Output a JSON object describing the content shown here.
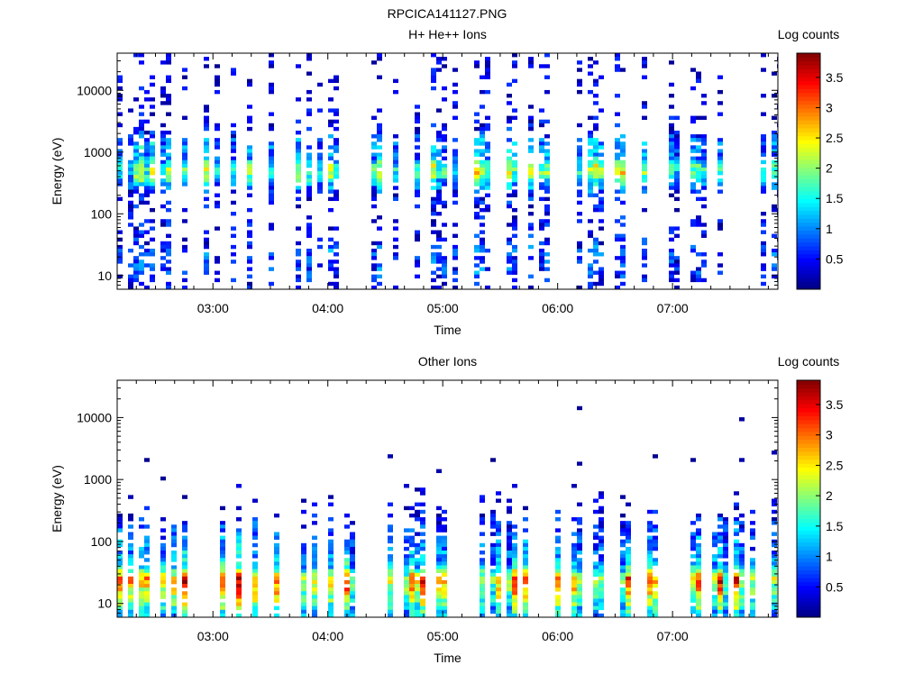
{
  "file_title": "RPCICA141127.PNG",
  "colormap": "jet",
  "chart_data": [
    {
      "type": "heatmap",
      "title": "H+ He++ Ions",
      "xlabel": "Time",
      "ylabel": "Energy (eV)",
      "colorbar_label": "Log counts",
      "x_ticks": [
        "03:00",
        "04:00",
        "05:00",
        "06:00",
        "07:00"
      ],
      "xlim": [
        "02:10",
        "07:55"
      ],
      "y_scale": "log",
      "y_ticks": [
        10,
        100,
        1000,
        10000
      ],
      "ylim": [
        6,
        40000
      ],
      "color_range": [
        0,
        3.9
      ],
      "colorbar_ticks": [
        0.5,
        1,
        1.5,
        2,
        2.5,
        3,
        3.5
      ],
      "structure": {
        "profile": [
          [
            7,
            0.35
          ],
          [
            9,
            0.7
          ],
          [
            12,
            0.85
          ],
          [
            18,
            0.8
          ],
          [
            25,
            1.0
          ],
          [
            35,
            0.55
          ],
          [
            60,
            0.45
          ],
          [
            110,
            0.4
          ],
          [
            200,
            0.6
          ],
          [
            300,
            1.35
          ],
          [
            400,
            2.0
          ],
          [
            500,
            2.4
          ],
          [
            650,
            2.0
          ],
          [
            800,
            1.15
          ],
          [
            1000,
            1.15
          ],
          [
            1300,
            1.35
          ],
          [
            1600,
            1.1
          ],
          [
            2000,
            0.55
          ],
          [
            3500,
            0.35
          ],
          [
            8000,
            0.3
          ],
          [
            20000,
            0.3
          ],
          [
            40000,
            0.25
          ]
        ],
        "peak_energy": 500,
        "peak_log_counts": 3.0,
        "secondary_band_energy": 1400
      }
    },
    {
      "type": "heatmap",
      "title": "Other Ions",
      "xlabel": "Time",
      "ylabel": "Energy (eV)",
      "colorbar_label": "Log counts",
      "x_ticks": [
        "03:00",
        "04:00",
        "05:00",
        "06:00",
        "07:00"
      ],
      "xlim": [
        "02:10",
        "07:55"
      ],
      "y_scale": "log",
      "y_ticks": [
        10,
        100,
        1000,
        10000
      ],
      "ylim": [
        6,
        40000
      ],
      "color_range": [
        0,
        3.9
      ],
      "colorbar_ticks": [
        0.5,
        1,
        1.5,
        2,
        2.5,
        3,
        3.5
      ],
      "structure": {
        "profile": [
          [
            7,
            1.6
          ],
          [
            10,
            2.2
          ],
          [
            14,
            2.7
          ],
          [
            18,
            3.0
          ],
          [
            22,
            3.3
          ],
          [
            26,
            3.3
          ],
          [
            30,
            2.6
          ],
          [
            40,
            1.6
          ],
          [
            60,
            1.25
          ],
          [
            100,
            1.1
          ],
          [
            150,
            0.9
          ],
          [
            250,
            0.55
          ],
          [
            400,
            0.3
          ],
          [
            700,
            0.1
          ],
          [
            1000,
            -0.3
          ],
          [
            40000,
            -0.6
          ]
        ],
        "peak_energy": 22,
        "peak_log_counts": 3.4
      }
    }
  ]
}
